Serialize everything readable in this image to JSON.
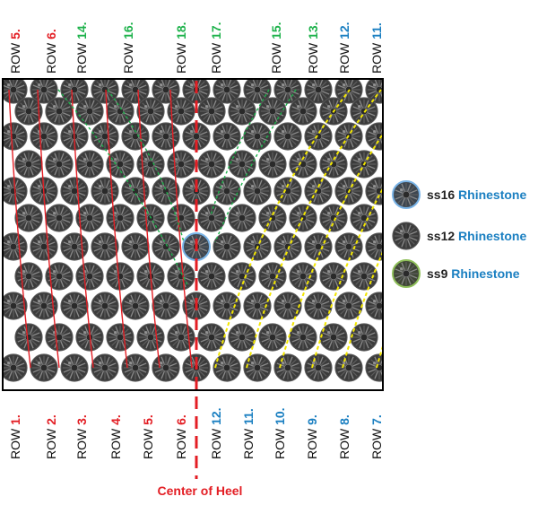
{
  "colors": {
    "red": "#e31e24",
    "green": "#1db24b",
    "blue": "#1a7fc1",
    "yellow": "#f2e600",
    "stone_dark": "#3a3a3a",
    "stone_ring_blue": "#79b3e6",
    "stone_ring_green": "#8fbf5a"
  },
  "top_rows": [
    {
      "label": "ROW",
      "num": "5.",
      "color": "#e31e24"
    },
    {
      "label": "ROW",
      "num": "6.",
      "color": "#e31e24"
    },
    {
      "label": "ROW",
      "num": "14.",
      "color": "#1db24b"
    },
    {
      "label": "ROW",
      "num": "16.",
      "color": "#1db24b"
    },
    {
      "label": "ROW",
      "num": "18.",
      "color": "#1db24b"
    },
    {
      "label": "ROW",
      "num": "17.",
      "color": "#1db24b"
    },
    {
      "label": "ROW",
      "num": "15.",
      "color": "#1db24b"
    },
    {
      "label": "ROW",
      "num": "13.",
      "color": "#1db24b"
    },
    {
      "label": "ROW",
      "num": "12.",
      "color": "#1a7fc1"
    },
    {
      "label": "ROW",
      "num": "11.",
      "color": "#1a7fc1"
    }
  ],
  "bottom_rows": [
    {
      "label": "ROW",
      "num": "1.",
      "color": "#e31e24"
    },
    {
      "label": "ROW",
      "num": "2.",
      "color": "#e31e24"
    },
    {
      "label": "ROW",
      "num": "3.",
      "color": "#e31e24"
    },
    {
      "label": "ROW",
      "num": "4.",
      "color": "#e31e24"
    },
    {
      "label": "ROW",
      "num": "5.",
      "color": "#e31e24"
    },
    {
      "label": "ROW",
      "num": "6.",
      "color": "#e31e24"
    },
    {
      "label": "ROW",
      "num": "12.",
      "color": "#1a7fc1"
    },
    {
      "label": "ROW",
      "num": "11.",
      "color": "#1a7fc1"
    },
    {
      "label": "ROW",
      "num": "10.",
      "color": "#1a7fc1"
    },
    {
      "label": "ROW",
      "num": "9.",
      "color": "#1a7fc1"
    },
    {
      "label": "ROW",
      "num": "8.",
      "color": "#1a7fc1"
    },
    {
      "label": "ROW",
      "num": "7.",
      "color": "#1a7fc1"
    }
  ],
  "legend": [
    {
      "size": "ss16",
      "word": "Rhinestone",
      "type": "ss16"
    },
    {
      "size": "ss12",
      "word": "Rhinestone",
      "type": "ss12"
    },
    {
      "size": "ss9",
      "word": "Rhinestone",
      "type": "ss9"
    }
  ],
  "center_label": "Center of Heel"
}
